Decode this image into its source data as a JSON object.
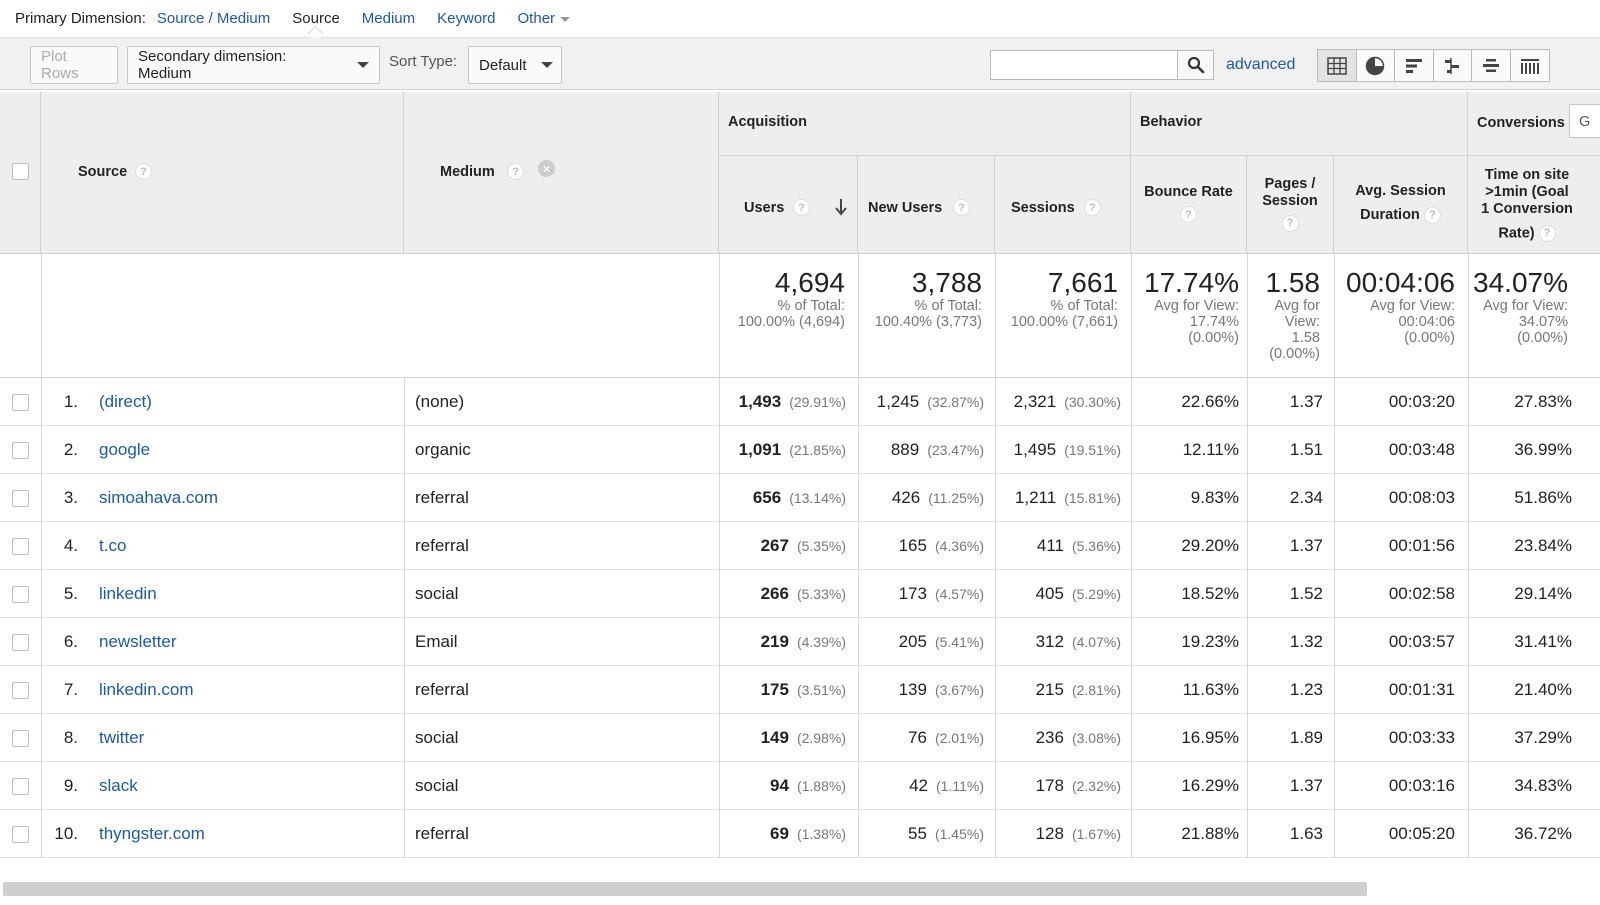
{
  "primary_dimension": {
    "label": "Primary Dimension:",
    "options": [
      {
        "label": "Source / Medium",
        "active": false
      },
      {
        "label": "Source",
        "active": true
      },
      {
        "label": "Medium",
        "active": false
      },
      {
        "label": "Keyword",
        "active": false
      },
      {
        "label": "Other",
        "active": false
      }
    ]
  },
  "toolbar": {
    "plot_rows": "Plot Rows",
    "secondary_dimension": "Secondary dimension: Medium",
    "sort_type_label": "Sort Type:",
    "sort_type_value": "Default",
    "search_value": "",
    "advanced": "advanced",
    "view_icons": [
      "table-view-icon",
      "pie-view-icon",
      "performance-view-icon",
      "comparison-view-icon",
      "term-cloud-view-icon",
      "pivot-view-icon"
    ]
  },
  "table": {
    "headers": {
      "source": "Source",
      "medium": "Medium",
      "acquisition": "Acquisition",
      "behavior": "Behavior",
      "conversions": "Conversions",
      "goal_select": "G",
      "users": "Users",
      "new_users": "New Users",
      "sessions": "Sessions",
      "bounce_rate": "Bounce Rate",
      "pages_session_1": "Pages /",
      "pages_session_2": "Session",
      "avg_session_1": "Avg. Session",
      "avg_session_2": "Duration",
      "goal_1": "Time on site",
      "goal_2": ">1min (Goal",
      "goal_3": "1 Conversion",
      "goal_4": "Rate)"
    },
    "totals": {
      "users": "4,694",
      "users_sub1": "% of Total:",
      "users_sub2": "100.00% (4,694)",
      "new_users": "3,788",
      "new_users_sub1": "% of Total:",
      "new_users_sub2": "100.40% (3,773)",
      "sessions": "7,661",
      "sessions_sub1": "% of Total:",
      "sessions_sub2": "100.00% (7,661)",
      "bounce_rate": "17.74%",
      "bounce_sub1": "Avg for View:",
      "bounce_sub2": "17.74%",
      "bounce_sub3": "(0.00%)",
      "pages": "1.58",
      "pages_sub1": "Avg for",
      "pages_sub2": "View:",
      "pages_sub3": "1.58",
      "pages_sub4": "(0.00%)",
      "duration": "00:04:06",
      "duration_sub1": "Avg for View:",
      "duration_sub2": "00:04:06",
      "duration_sub3": "(0.00%)",
      "goal": "34.07%",
      "goal_sub1": "Avg for View:",
      "goal_sub2": "34.07%",
      "goal_sub3": "(0.00%)"
    },
    "rows": [
      {
        "idx": "1.",
        "source": "(direct)",
        "medium": "(none)",
        "users": "1,493",
        "users_pct": "(29.91%)",
        "new_users": "1,245",
        "new_users_pct": "(32.87%)",
        "sessions": "2,321",
        "sessions_pct": "(30.30%)",
        "bounce": "22.66%",
        "pages": "1.37",
        "duration": "00:03:20",
        "goal": "27.83%"
      },
      {
        "idx": "2.",
        "source": "google",
        "medium": "organic",
        "users": "1,091",
        "users_pct": "(21.85%)",
        "new_users": "889",
        "new_users_pct": "(23.47%)",
        "sessions": "1,495",
        "sessions_pct": "(19.51%)",
        "bounce": "12.11%",
        "pages": "1.51",
        "duration": "00:03:48",
        "goal": "36.99%"
      },
      {
        "idx": "3.",
        "source": "simoahava.com",
        "medium": "referral",
        "users": "656",
        "users_pct": "(13.14%)",
        "new_users": "426",
        "new_users_pct": "(11.25%)",
        "sessions": "1,211",
        "sessions_pct": "(15.81%)",
        "bounce": "9.83%",
        "pages": "2.34",
        "duration": "00:08:03",
        "goal": "51.86%"
      },
      {
        "idx": "4.",
        "source": "t.co",
        "medium": "referral",
        "users": "267",
        "users_pct": "(5.35%)",
        "new_users": "165",
        "new_users_pct": "(4.36%)",
        "sessions": "411",
        "sessions_pct": "(5.36%)",
        "bounce": "29.20%",
        "pages": "1.37",
        "duration": "00:01:56",
        "goal": "23.84%"
      },
      {
        "idx": "5.",
        "source": "linkedin",
        "medium": "social",
        "users": "266",
        "users_pct": "(5.33%)",
        "new_users": "173",
        "new_users_pct": "(4.57%)",
        "sessions": "405",
        "sessions_pct": "(5.29%)",
        "bounce": "18.52%",
        "pages": "1.52",
        "duration": "00:02:58",
        "goal": "29.14%"
      },
      {
        "idx": "6.",
        "source": "newsletter",
        "medium": "Email",
        "users": "219",
        "users_pct": "(4.39%)",
        "new_users": "205",
        "new_users_pct": "(5.41%)",
        "sessions": "312",
        "sessions_pct": "(4.07%)",
        "bounce": "19.23%",
        "pages": "1.32",
        "duration": "00:03:57",
        "goal": "31.41%"
      },
      {
        "idx": "7.",
        "source": "linkedin.com",
        "medium": "referral",
        "users": "175",
        "users_pct": "(3.51%)",
        "new_users": "139",
        "new_users_pct": "(3.67%)",
        "sessions": "215",
        "sessions_pct": "(2.81%)",
        "bounce": "11.63%",
        "pages": "1.23",
        "duration": "00:01:31",
        "goal": "21.40%"
      },
      {
        "idx": "8.",
        "source": "twitter",
        "medium": "social",
        "users": "149",
        "users_pct": "(2.98%)",
        "new_users": "76",
        "new_users_pct": "(2.01%)",
        "sessions": "236",
        "sessions_pct": "(3.08%)",
        "bounce": "16.95%",
        "pages": "1.89",
        "duration": "00:03:33",
        "goal": "37.29%"
      },
      {
        "idx": "9.",
        "source": "slack",
        "medium": "social",
        "users": "94",
        "users_pct": "(1.88%)",
        "new_users": "42",
        "new_users_pct": "(1.11%)",
        "sessions": "178",
        "sessions_pct": "(2.32%)",
        "bounce": "16.29%",
        "pages": "1.37",
        "duration": "00:03:16",
        "goal": "34.83%"
      },
      {
        "idx": "10.",
        "source": "thyngster.com",
        "medium": "referral",
        "users": "69",
        "users_pct": "(1.38%)",
        "new_users": "55",
        "new_users_pct": "(1.45%)",
        "sessions": "128",
        "sessions_pct": "(1.67%)",
        "bounce": "21.88%",
        "pages": "1.63",
        "duration": "00:05:20",
        "goal": "36.72%"
      }
    ]
  },
  "colors": {
    "link": "#1a5aa8",
    "header_bg": "#eeeeee",
    "toolbar_bg": "#f1f1f1"
  }
}
